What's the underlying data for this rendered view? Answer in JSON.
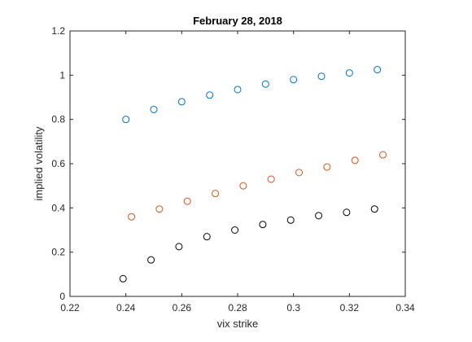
{
  "chart_data": {
    "type": "scatter",
    "title": "February 28, 2018",
    "xlabel": "vix strike",
    "ylabel": "implied volatility",
    "xlim": [
      0.22,
      0.34
    ],
    "ylim": [
      0,
      1.2
    ],
    "x_ticks": [
      0.22,
      0.24,
      0.26,
      0.28,
      0.3,
      0.32,
      0.34
    ],
    "x_tick_labels": [
      "0.22",
      "0.24",
      "0.26",
      "0.28",
      "0.3",
      "0.32",
      "0.34"
    ],
    "y_ticks": [
      0,
      0.2,
      0.4,
      0.6,
      0.8,
      1,
      1.2
    ],
    "y_tick_labels": [
      "0",
      "0.2",
      "0.4",
      "0.6",
      "0.8",
      "1",
      "1.2"
    ],
    "grid": false,
    "marker": "open-circle",
    "series": [
      {
        "color": "#0072BD",
        "x": [
          0.24,
          0.25,
          0.26,
          0.27,
          0.28,
          0.29,
          0.3,
          0.31,
          0.32,
          0.33
        ],
        "y": [
          0.8,
          0.845,
          0.88,
          0.91,
          0.935,
          0.96,
          0.98,
          0.995,
          1.01,
          1.025
        ]
      },
      {
        "color": "#D95319",
        "x": [
          0.242,
          0.252,
          0.262,
          0.272,
          0.282,
          0.292,
          0.302,
          0.312,
          0.322,
          0.332
        ],
        "y": [
          0.36,
          0.395,
          0.43,
          0.465,
          0.5,
          0.53,
          0.56,
          0.585,
          0.615,
          0.64
        ]
      },
      {
        "color": "#000000",
        "x": [
          0.239,
          0.249,
          0.259,
          0.269,
          0.279,
          0.289,
          0.299,
          0.309,
          0.319,
          0.329
        ],
        "y": [
          0.08,
          0.165,
          0.225,
          0.27,
          0.3,
          0.325,
          0.345,
          0.365,
          0.38,
          0.395
        ]
      }
    ]
  }
}
